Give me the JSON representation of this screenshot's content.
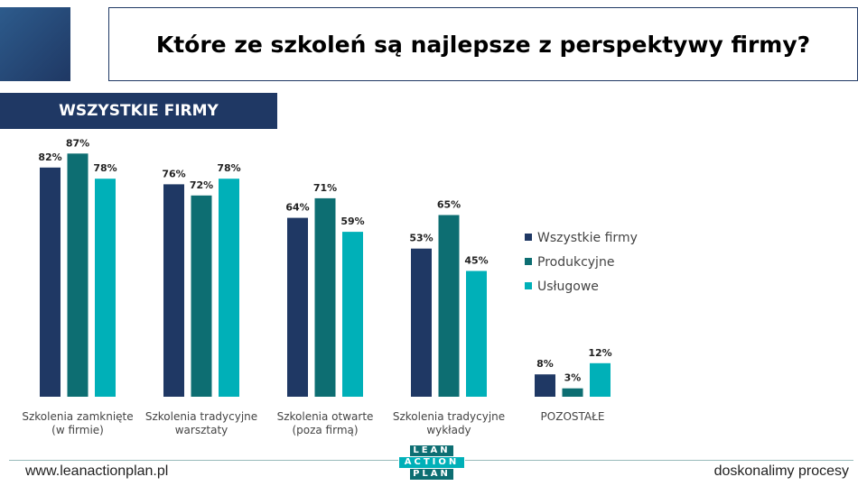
{
  "header": {
    "title": "Które ze szkoleń są najlepsze z perspektywy firmy?",
    "section": "WSZYSTKIE FIRMY"
  },
  "chart_data": {
    "type": "bar",
    "categories": [
      "Szkolenia zamknięte (w firmie)",
      "Szkolenia tradycyjne warsztaty",
      "Szkolenia otwarte (poza firmą)",
      "Szkolenia tradycyjne wykłady",
      "POZOSTAŁE"
    ],
    "series": [
      {
        "name": "Wszystkie firmy",
        "color": "#1f3864",
        "values": [
          82,
          76,
          64,
          53,
          8
        ],
        "value_labels": [
          "82%",
          "76%",
          "64%",
          "53%",
          "8%"
        ]
      },
      {
        "name": "Produkcyjne",
        "color": "#0d6e72",
        "values": [
          87,
          72,
          71,
          65,
          3
        ],
        "value_labels": [
          "87%",
          "72%",
          "71%",
          "65%",
          "3%"
        ]
      },
      {
        "name": "Usługowe",
        "color": "#00b0b8",
        "values": [
          78,
          78,
          59,
          45,
          12
        ],
        "value_labels": [
          "78%",
          "78%",
          "59%",
          "45%",
          "12%"
        ]
      }
    ],
    "legend": "right"
  },
  "footer": {
    "website": "www.leanactionplan.pl",
    "slogan": "doskonalimy procesy",
    "logo": [
      "LEAN",
      "ACTION",
      "PLAN"
    ]
  }
}
